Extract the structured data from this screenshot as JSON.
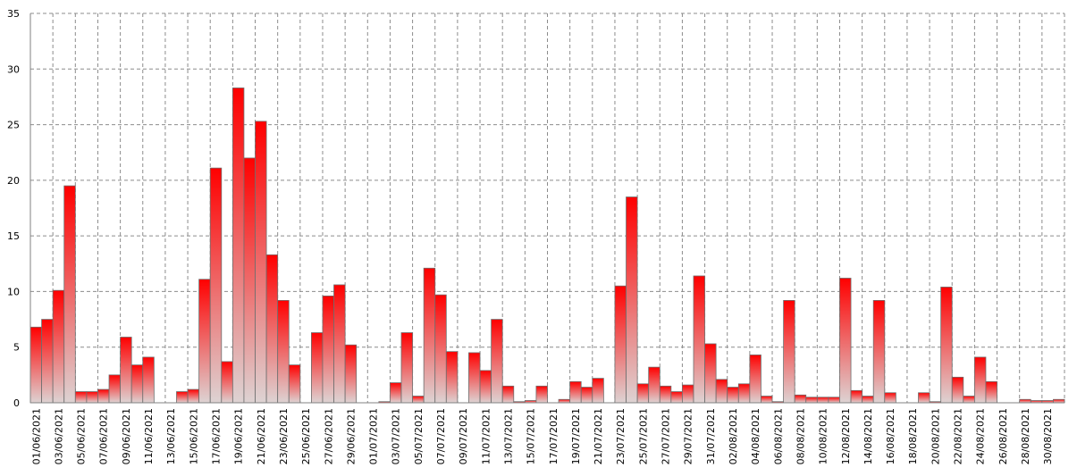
{
  "chart_data": {
    "type": "bar",
    "categories": [
      "01/06/2021",
      null,
      "03/06/2021",
      null,
      "05/06/2021",
      null,
      "07/06/2021",
      null,
      "09/06/2021",
      null,
      "11/06/2021",
      null,
      "13/06/2021",
      null,
      "15/06/2021",
      null,
      "17/06/2021",
      null,
      "19/06/2021",
      null,
      "21/06/2021",
      null,
      "23/06/2021",
      null,
      "25/06/2021",
      null,
      "27/06/2021",
      null,
      "29/06/2021",
      null,
      "01/07/2021",
      null,
      "03/07/2021",
      null,
      "05/07/2021",
      null,
      "07/07/2021",
      null,
      "09/07/2021",
      null,
      "11/07/2021",
      null,
      "13/07/2021",
      null,
      "15/07/2021",
      null,
      "17/07/2021",
      null,
      "19/07/2021",
      null,
      "21/07/2021",
      null,
      "23/07/2021",
      null,
      "25/07/2021",
      null,
      "27/07/2021",
      null,
      "29/07/2021",
      null,
      "31/07/2021",
      null,
      "02/08/2021",
      null,
      "04/08/2021",
      null,
      "06/08/2021",
      null,
      "08/08/2021",
      null,
      "10/08/2021",
      null,
      "12/08/2021",
      null,
      "14/08/2021",
      null,
      "16/08/2021",
      null,
      "18/08/2021",
      null,
      "20/08/2021",
      null,
      "22/08/2021",
      null,
      "24/08/2021",
      null,
      "26/08/2021",
      null,
      "28/08/2021",
      null,
      "30/08/2021",
      null
    ],
    "values": [
      6.8,
      7.5,
      10.1,
      19.5,
      1.0,
      1.0,
      1.2,
      2.5,
      5.9,
      3.4,
      4.1,
      0,
      0,
      1.0,
      1.2,
      11.1,
      21.1,
      3.7,
      28.3,
      22.0,
      25.3,
      13.3,
      9.2,
      3.4,
      0,
      6.3,
      9.6,
      10.6,
      5.2,
      0,
      0,
      0.1,
      1.8,
      6.3,
      0.6,
      12.1,
      9.7,
      4.6,
      0,
      4.5,
      2.9,
      7.5,
      1.5,
      0.1,
      0.2,
      1.5,
      0,
      0.3,
      1.9,
      1.4,
      2.2,
      0,
      10.5,
      18.5,
      1.7,
      3.2,
      1.5,
      1.0,
      1.6,
      11.4,
      5.3,
      2.1,
      1.4,
      1.7,
      4.3,
      0.6,
      0.1,
      9.2,
      0.7,
      0.5,
      0.5,
      0.5,
      11.2,
      1.1,
      0.6,
      9.2,
      0.9,
      0,
      0,
      0.9,
      0.1,
      10.4,
      2.3,
      0.6,
      4.1,
      1.9,
      0,
      0,
      0.3,
      0.2,
      0.2,
      0.3
    ],
    "color": "#ff0000",
    "ylim": [
      0,
      35
    ],
    "yticks": [
      0,
      5,
      10,
      15,
      20,
      25,
      30,
      35
    ],
    "grid": true
  }
}
